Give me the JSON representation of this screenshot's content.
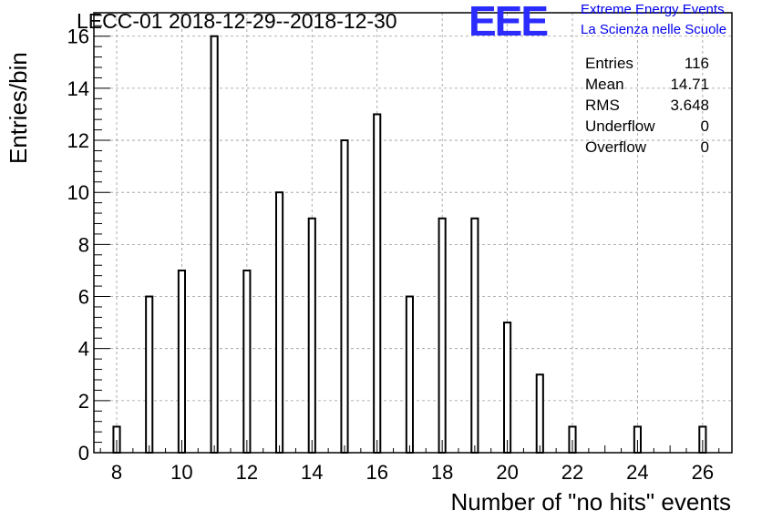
{
  "header": {
    "title": "LECC-01 2018-12-29--2018-12-30",
    "logo_text": "EEE",
    "logo_line1": "Extreme Energy Events",
    "logo_line2": "La Scienza nelle Scuole",
    "logo_color": "#2b2bff"
  },
  "stats": [
    {
      "label": "Entries",
      "value": "116"
    },
    {
      "label": "Mean",
      "value": "14.71"
    },
    {
      "label": "RMS",
      "value": "3.648"
    },
    {
      "label": "Underflow",
      "value": "0"
    },
    {
      "label": "Overflow",
      "value": "0"
    }
  ],
  "chart_data": {
    "type": "bar",
    "title": "LECC-01 2018-12-29--2018-12-30",
    "xlabel": "Number of \"no hits\" events",
    "ylabel": "Entries/bin",
    "categories": [
      8,
      9,
      10,
      11,
      12,
      13,
      14,
      15,
      16,
      17,
      18,
      19,
      20,
      21,
      22,
      24,
      26
    ],
    "values": [
      1,
      6,
      7,
      16,
      7,
      10,
      9,
      12,
      13,
      6,
      9,
      9,
      5,
      3,
      1,
      1,
      1
    ],
    "xlim": [
      7.3,
      26.9
    ],
    "ylim": [
      0,
      16.9
    ],
    "xticks": [
      8,
      10,
      12,
      14,
      16,
      18,
      20,
      22,
      24,
      26
    ],
    "yticks": [
      0,
      2,
      4,
      6,
      8,
      10,
      12,
      14,
      16
    ],
    "grid": true,
    "bar_color": "#000000"
  }
}
